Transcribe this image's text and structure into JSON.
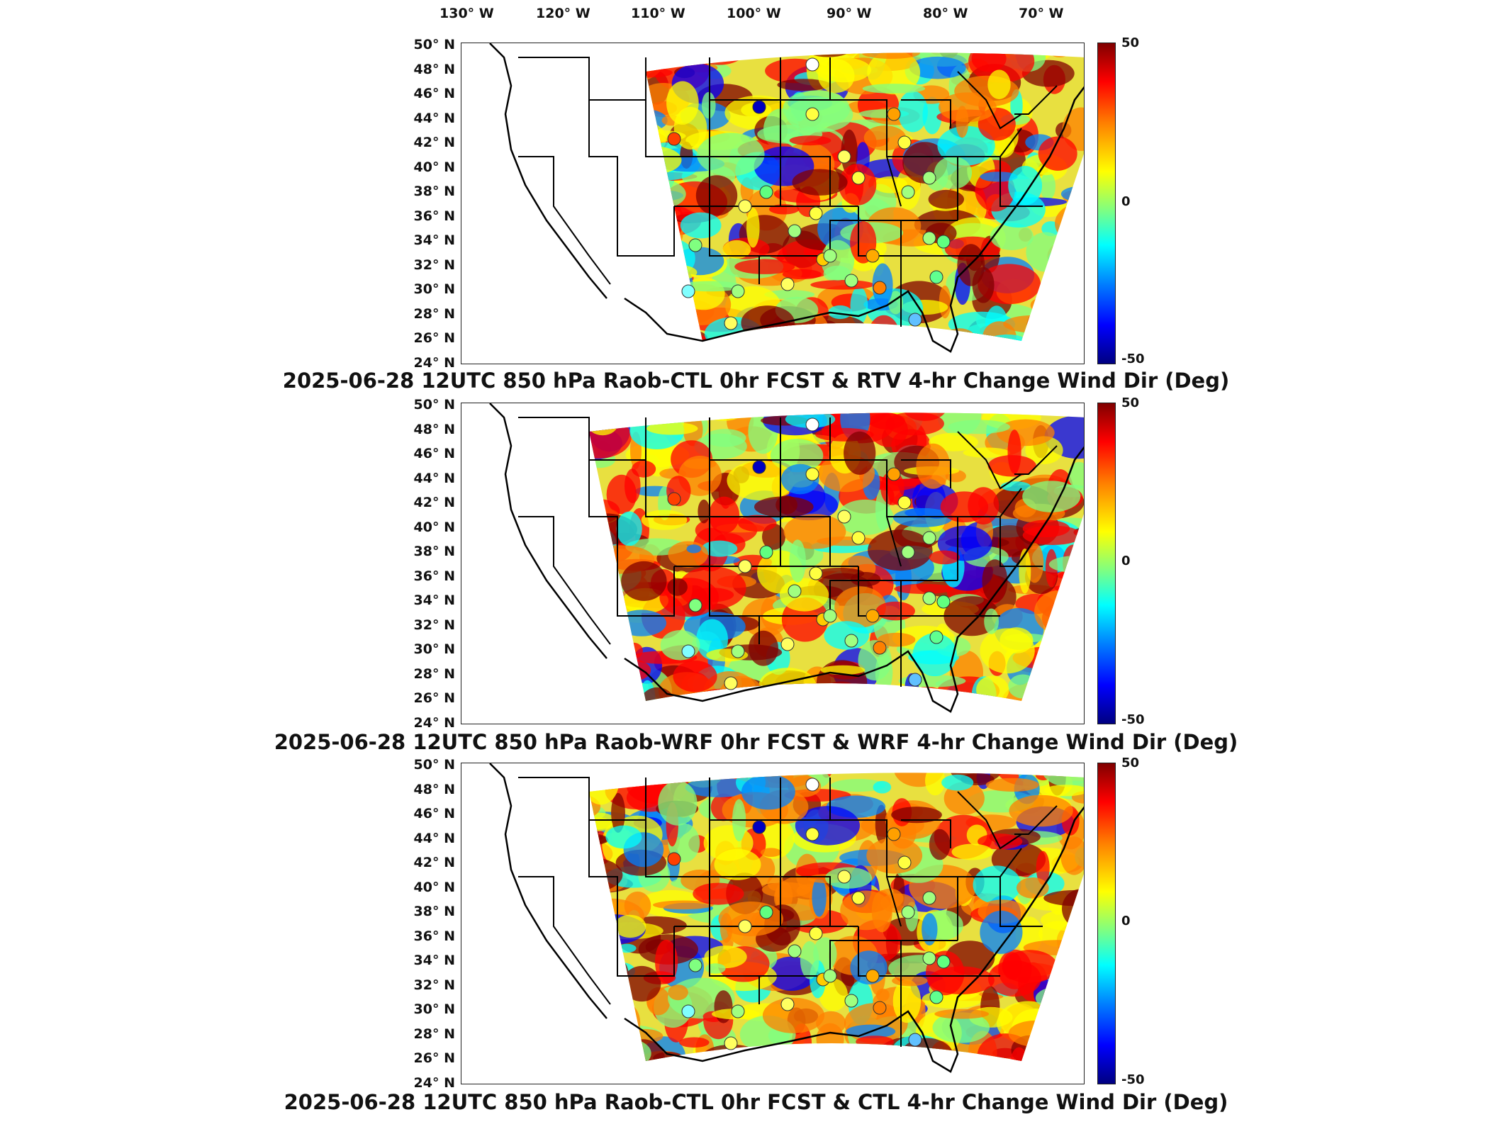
{
  "lon_labels": [
    "130° W",
    "120° W",
    "110° W",
    "100° W",
    "90° W",
    "80° W",
    "70° W"
  ],
  "lat_labels": [
    "50° N",
    "48° N",
    "46° N",
    "44° N",
    "42° N",
    "40° N",
    "38° N",
    "36° N",
    "34° N",
    "32° N",
    "30° N",
    "28° N",
    "26° N",
    "24° N"
  ],
  "colorbar": {
    "max_label": "50",
    "mid_label": "0",
    "min_label": "-50",
    "colors": [
      "#800000",
      "#ff0000",
      "#ff8000",
      "#ffff00",
      "#80ff80",
      "#00ffff",
      "#0080ff",
      "#0000ff",
      "#000080"
    ]
  },
  "panels": [
    {
      "title": "2025-06-28 12UTC 850 hPa Raob-CTL 0hr FCST & RTV 4-hr Change Wind Dir (Deg)"
    },
    {
      "title": "2025-06-28 12UTC 850 hPa Raob-WRF 0hr FCST & WRF 4-hr Change Wind Dir (Deg)"
    },
    {
      "title": "2025-06-28 12UTC 850 hPa Raob-CTL 0hr FCST & CTL 4-hr Change Wind Dir (Deg)"
    }
  ]
}
